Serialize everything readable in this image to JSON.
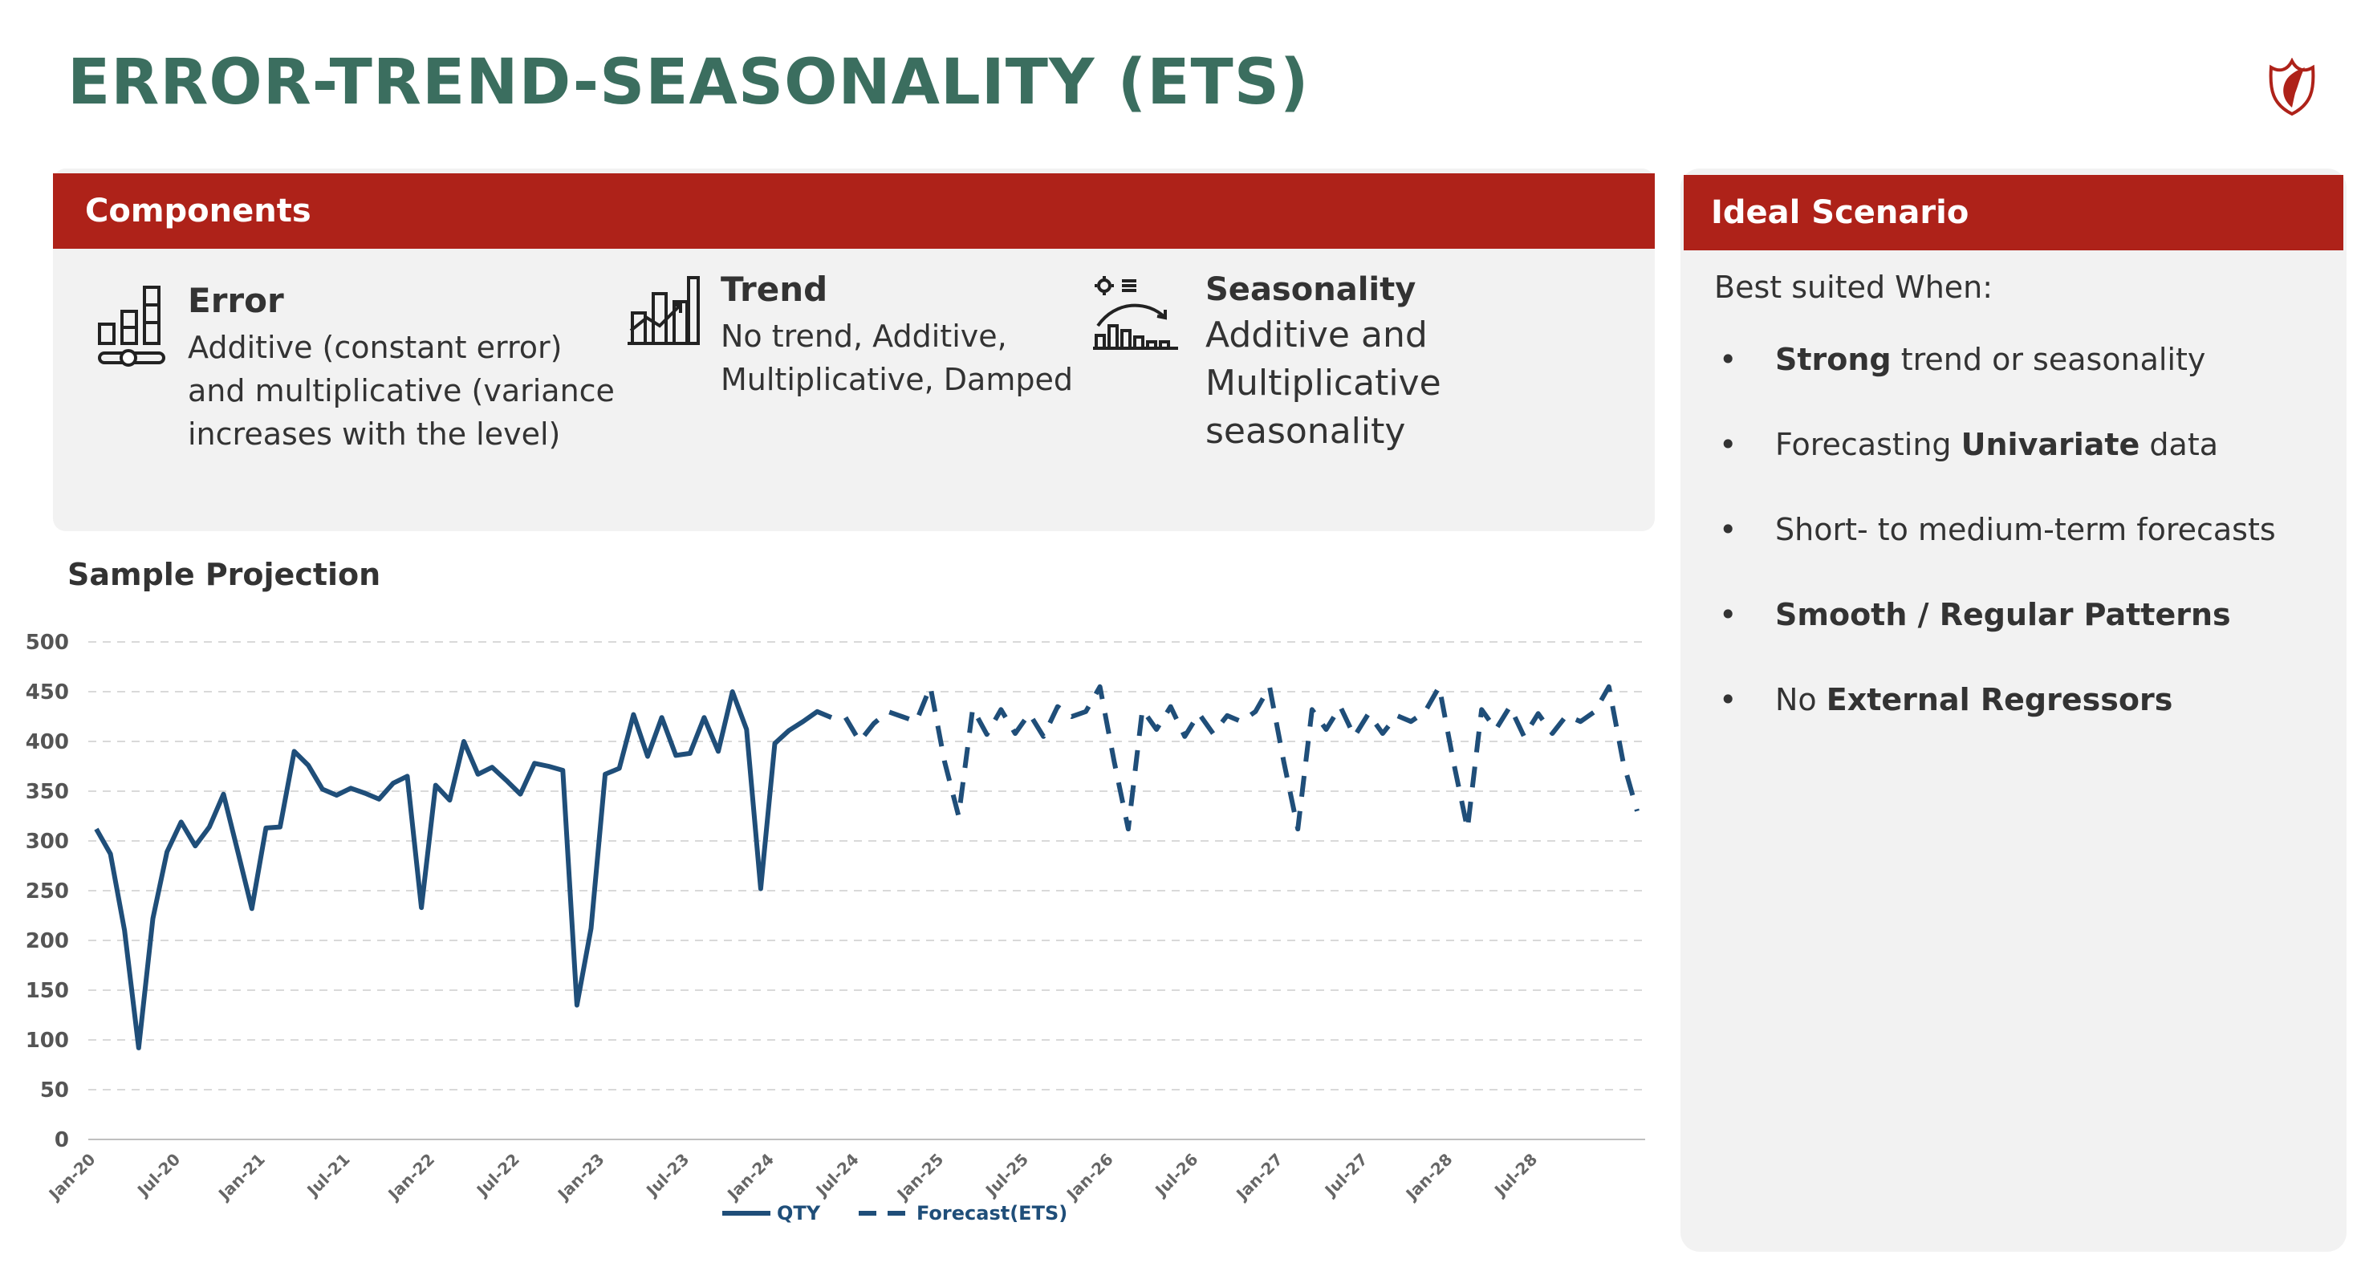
{
  "page_title": "ERROR-TREND-SEASONALITY (ETS)",
  "components": {
    "header": "Components",
    "items": [
      {
        "icon": "bar-chart-slider-icon",
        "title": "Error",
        "desc": "Additive (constant error)\nand multiplicative (variance\nincreases with the level)"
      },
      {
        "icon": "trend-chart-icon",
        "title": "Trend",
        "desc": "No trend, Additive,\nMultiplicative, Damped"
      },
      {
        "icon": "seasonality-chart-icon",
        "title": "Seasonality",
        "desc": "Additive and\nMultiplicative\nseasonality"
      }
    ]
  },
  "ideal": {
    "header": "Ideal Scenario",
    "lead": "Best suited When:",
    "bullets": [
      {
        "parts": [
          {
            "t": "Strong",
            "b": true
          },
          {
            "t": " trend or seasonality",
            "b": false
          }
        ]
      },
      {
        "parts": [
          {
            "t": "Forecasting ",
            "b": false
          },
          {
            "t": "Univariate",
            "b": true
          },
          {
            "t": " data",
            "b": false
          }
        ]
      },
      {
        "parts": [
          {
            "t": "Short- to medium-term forecasts",
            "b": false
          }
        ]
      },
      {
        "parts": [
          {
            "t": "Smooth / Regular Patterns",
            "b": true
          }
        ]
      },
      {
        "parts": [
          {
            "t": "No ",
            "b": false
          },
          {
            "t": "External Regressors",
            "b": true
          }
        ]
      }
    ]
  },
  "chart_title": "Sample Projection",
  "colors": {
    "accent_red": "#ae2219",
    "title_green": "#3b6e5f",
    "series": "#1f4e79"
  },
  "chart_data": {
    "type": "line",
    "ylim": [
      0,
      500
    ],
    "yticks": [
      0,
      50,
      100,
      150,
      200,
      250,
      300,
      350,
      400,
      450,
      500
    ],
    "x_tick_labels": [
      "Jan-20",
      "Jul-20",
      "Jan-21",
      "Jul-21",
      "Jan-22",
      "Jul-22",
      "Jan-23",
      "Jul-23",
      "Jan-24",
      "Jul-24",
      "Jan-25",
      "Jul-25",
      "Jan-26",
      "Jul-26",
      "Jan-27",
      "Jul-27",
      "Jan-28",
      "Jul-28"
    ],
    "grid": true,
    "legend_position": "bottom",
    "series": [
      {
        "name": "QTY",
        "style": "solid",
        "start": "Jan-20",
        "values": [
          312,
          287,
          210,
          92,
          222,
          289,
          319,
          295,
          314,
          347,
          290,
          232,
          313,
          314,
          390,
          376,
          352,
          346,
          353,
          348,
          342,
          358,
          365,
          233,
          356,
          341,
          400,
          367,
          374,
          361,
          347,
          378,
          375,
          371,
          135,
          212,
          367,
          373,
          427,
          385,
          424,
          386,
          388,
          424,
          390,
          450,
          412,
          252,
          398,
          411,
          420,
          430,
          424
        ]
      },
      {
        "name": "Forecast(ETS)",
        "style": "dashed",
        "start": "Jun-24",
        "values": [
          424,
          400,
          418,
          430,
          425,
          420,
          455,
          380,
          325,
          433,
          407,
          432,
          408,
          428,
          405,
          435,
          425,
          430,
          455,
          380,
          312,
          432,
          412,
          435,
          405,
          428,
          408,
          426,
          420,
          430,
          455,
          380,
          312,
          432,
          412,
          435,
          405,
          428,
          408,
          426,
          420,
          430,
          455,
          380,
          312,
          432,
          412,
          435,
          405,
          428,
          408,
          426,
          420,
          430,
          455,
          380,
          330
        ]
      }
    ]
  }
}
